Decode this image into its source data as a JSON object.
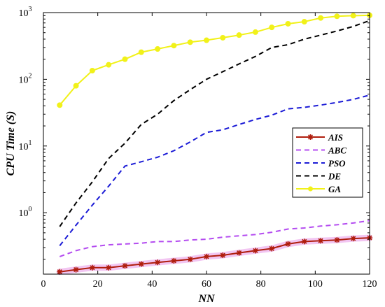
{
  "chart_data": {
    "type": "line",
    "title": "",
    "xlabel": "NN",
    "ylabel": "CPU Time (S)",
    "xlim": [
      0,
      120
    ],
    "ylim": [
      0.12,
      1000
    ],
    "yscale": "log",
    "grid": false,
    "legend_position": "right-center",
    "x_ticks": [
      0,
      20,
      40,
      60,
      80,
      100,
      120
    ],
    "x_tick_labels": [
      "0",
      "20",
      "40",
      "60",
      "80",
      "100",
      "120"
    ],
    "y_ticks": [
      1,
      10,
      100,
      1000
    ],
    "y_tick_labels": [
      {
        "base": "10",
        "exp": "0"
      },
      {
        "base": "10",
        "exp": "1"
      },
      {
        "base": "10",
        "exp": "2"
      },
      {
        "base": "10",
        "exp": "3"
      }
    ],
    "series": [
      {
        "name": "AIS",
        "color": "#b01e0e",
        "style": "solid-star-markers",
        "x": [
          6,
          12,
          18,
          24,
          30,
          36,
          42,
          48,
          54,
          60,
          66,
          72,
          78,
          84,
          90,
          96,
          102,
          108,
          114,
          120
        ],
        "y": [
          0.13,
          0.14,
          0.15,
          0.15,
          0.16,
          0.17,
          0.18,
          0.19,
          0.2,
          0.22,
          0.23,
          0.25,
          0.27,
          0.29,
          0.34,
          0.37,
          0.38,
          0.39,
          0.41,
          0.42
        ]
      },
      {
        "name": "ABC",
        "color": "#b44cf0",
        "style": "dashed",
        "x": [
          6,
          12,
          18,
          24,
          30,
          36,
          42,
          48,
          54,
          60,
          66,
          72,
          78,
          84,
          90,
          96,
          102,
          108,
          114,
          120
        ],
        "y": [
          0.22,
          0.27,
          0.31,
          0.33,
          0.34,
          0.35,
          0.37,
          0.37,
          0.39,
          0.4,
          0.43,
          0.45,
          0.47,
          0.51,
          0.57,
          0.59,
          0.63,
          0.66,
          0.7,
          0.76
        ]
      },
      {
        "name": "PSO",
        "color": "#1b1bd6",
        "style": "dashed",
        "x": [
          6,
          12,
          18,
          24,
          30,
          36,
          42,
          48,
          54,
          60,
          66,
          72,
          78,
          84,
          90,
          96,
          102,
          108,
          114,
          120
        ],
        "y": [
          0.32,
          0.65,
          1.3,
          2.5,
          5.0,
          5.8,
          6.8,
          8.5,
          11.5,
          16,
          17.5,
          21,
          25,
          29,
          36,
          38,
          41,
          45,
          50,
          58
        ]
      },
      {
        "name": "DE",
        "color": "#000000",
        "style": "dashed",
        "x": [
          6,
          12,
          18,
          24,
          30,
          36,
          42,
          48,
          54,
          60,
          66,
          72,
          78,
          84,
          90,
          96,
          102,
          108,
          114,
          120
        ],
        "y": [
          0.62,
          1.4,
          2.9,
          6.5,
          11,
          21,
          30,
          48,
          70,
          100,
          130,
          170,
          220,
          300,
          330,
          400,
          460,
          530,
          620,
          760
        ]
      },
      {
        "name": "GA",
        "color": "#f1f119",
        "style": "solid-circle-markers",
        "x": [
          6,
          12,
          18,
          24,
          30,
          36,
          42,
          48,
          54,
          60,
          66,
          72,
          78,
          84,
          90,
          96,
          102,
          108,
          114,
          120
        ],
        "y": [
          41,
          80,
          135,
          165,
          200,
          255,
          285,
          320,
          360,
          385,
          420,
          460,
          510,
          600,
          680,
          730,
          830,
          880,
          900,
          910
        ]
      }
    ]
  }
}
